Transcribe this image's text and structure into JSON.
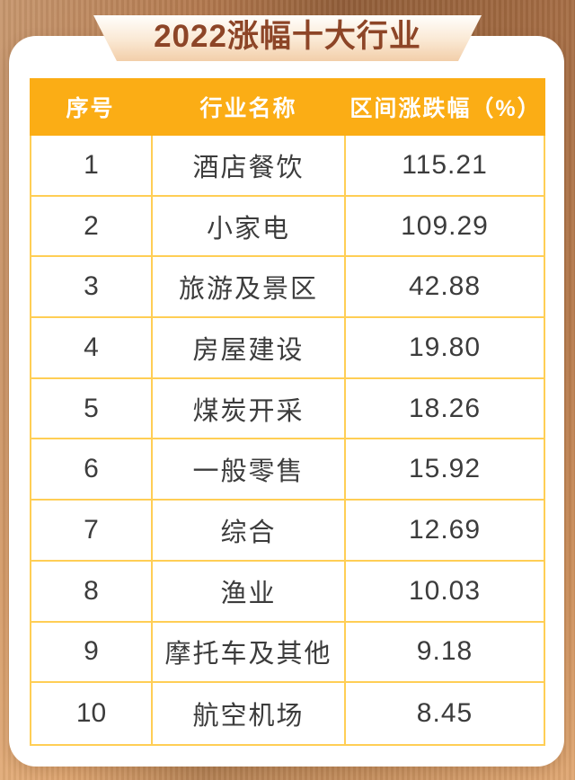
{
  "title": "2022涨幅十大行业",
  "chart_data": {
    "type": "table",
    "title": "2022涨幅十大行业",
    "columns": [
      "序号",
      "行业名称",
      "区间涨跌幅（%）"
    ],
    "rows": [
      {
        "rank": "1",
        "industry": "酒店餐饮",
        "change": "115.21"
      },
      {
        "rank": "2",
        "industry": "小家电",
        "change": "109.29"
      },
      {
        "rank": "3",
        "industry": "旅游及景区",
        "change": "42.88"
      },
      {
        "rank": "4",
        "industry": "房屋建设",
        "change": "19.80"
      },
      {
        "rank": "5",
        "industry": "煤炭开采",
        "change": "18.26"
      },
      {
        "rank": "6",
        "industry": "一般零售",
        "change": "15.92"
      },
      {
        "rank": "7",
        "industry": "综合",
        "change": "12.69"
      },
      {
        "rank": "8",
        "industry": "渔业",
        "change": "10.03"
      },
      {
        "rank": "9",
        "industry": "摩托车及其他",
        "change": "9.18"
      },
      {
        "rank": "10",
        "industry": "航空机场",
        "change": "8.45"
      }
    ]
  },
  "colors": {
    "header_bg": "#fbad15",
    "grid_line": "#ffce55",
    "title_text": "#8d4527",
    "header_text": "#ffffff",
    "cell_text": "#3c3c3c",
    "banner_gradient_top": "#fffefc",
    "banner_gradient_bottom": "#f2cea9",
    "background_wood": "#bc7c4c",
    "card_bg": "#ffffff"
  }
}
